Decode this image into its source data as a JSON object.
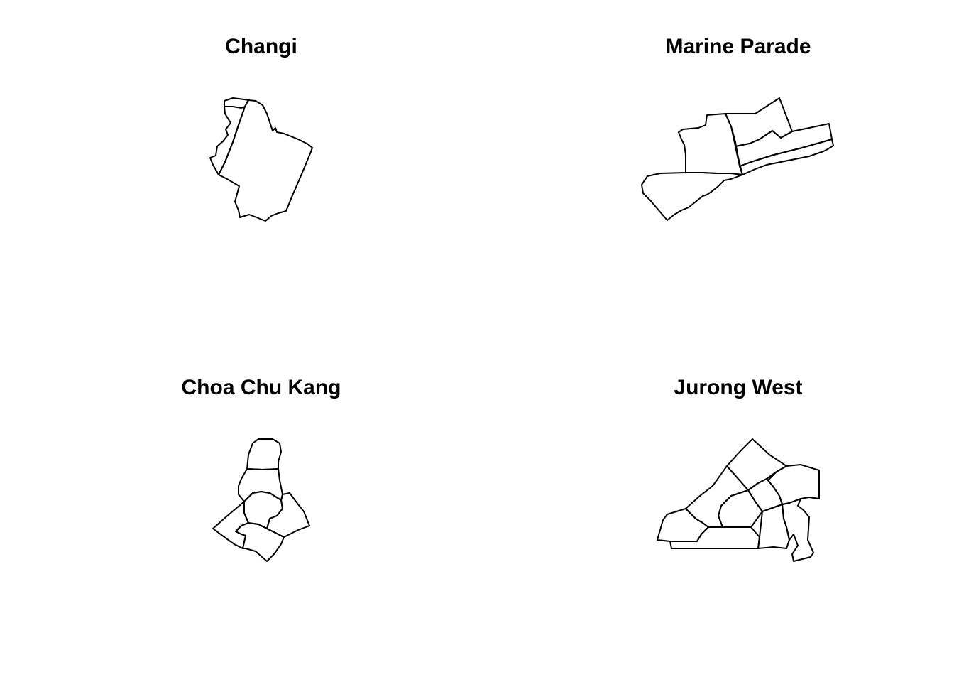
{
  "figure": {
    "panels": [
      {
        "title": "Changi",
        "subzones": 2
      },
      {
        "title": "Marine Parade",
        "subzones": 6
      },
      {
        "title": "Choa Chu Kang",
        "subzones": 8
      },
      {
        "title": "Jurong West",
        "subzones": 11
      }
    ],
    "stroke_color": "#000000",
    "background_color": "#ffffff"
  }
}
